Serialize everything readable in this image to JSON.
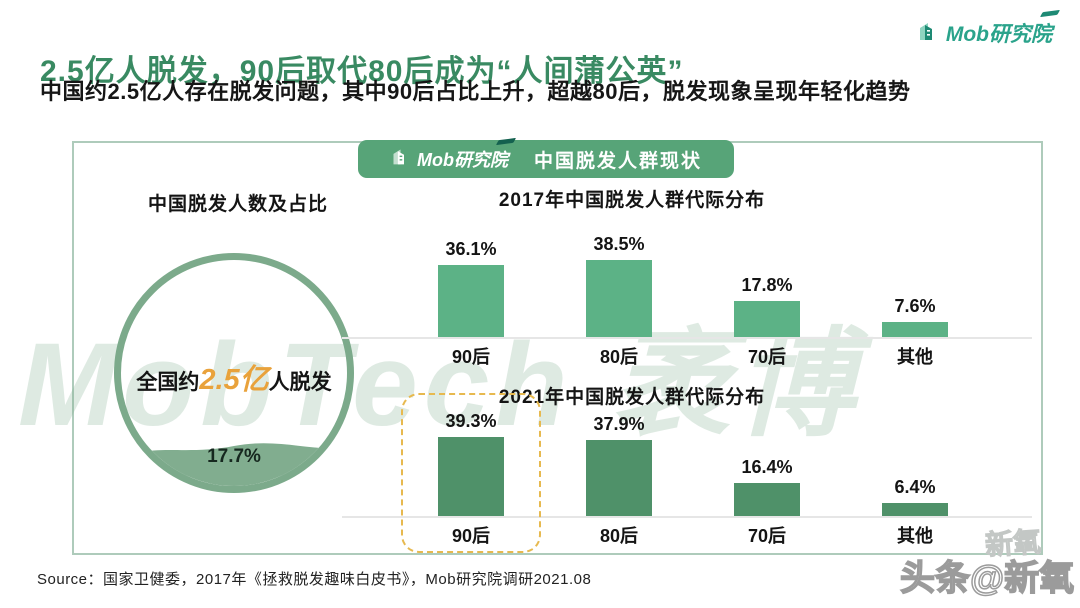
{
  "page": {
    "title": "2.5亿人脱发，90后取代80后成为“人间蒲公英”",
    "subtitle": "中国约2.5亿人存在脱发问题，其中90后占比上升，超越80后，脱发现象呈现年轻化趋势",
    "source": "Source：国家卫健委，2017年《拯救脱发趣味白皮书》，Mob研究院调研2021.08"
  },
  "brand": {
    "logo_text": "Mob研究院",
    "badge_title": "中国脱发人群现状"
  },
  "watermarks": {
    "center": "MobTech 袤博",
    "corner": "头条@新氧",
    "corner_faint": "新氧"
  },
  "left_panel": {
    "heading": "中国脱发人数及占比",
    "circle_text_prefix": "全国约",
    "circle_highlight": "2.5亿",
    "circle_text_suffix": "人脱发",
    "percentage": "17.7%"
  },
  "chart_data": [
    {
      "type": "bar",
      "title": "2017年中国脱发人群代际分布",
      "categories": [
        "90后",
        "80后",
        "70后",
        "其他"
      ],
      "values": [
        36.1,
        38.5,
        17.8,
        7.6
      ],
      "unit": "%",
      "bar_color": "#5cb286",
      "highlight_index": null,
      "legend": "none",
      "grid": "off"
    },
    {
      "type": "bar",
      "title": "2021年中国脱发人群代际分布",
      "categories": [
        "90后",
        "80后",
        "70后",
        "其他"
      ],
      "values": [
        39.3,
        37.9,
        16.4,
        6.4
      ],
      "unit": "%",
      "bar_color": "#4f9169",
      "highlight_index": 0,
      "legend": "none",
      "grid": "off"
    }
  ],
  "colors": {
    "title_green": "#398a62",
    "badge_green": "#57a478",
    "bar_2017": "#5cb286",
    "bar_2021": "#4f9169",
    "circle_border": "#7caa8b",
    "wave_fill": "#81ad8f",
    "accent_orange": "#e9a23b",
    "highlight_dash": "#e7b94f",
    "card_border": "#aecbbb"
  }
}
